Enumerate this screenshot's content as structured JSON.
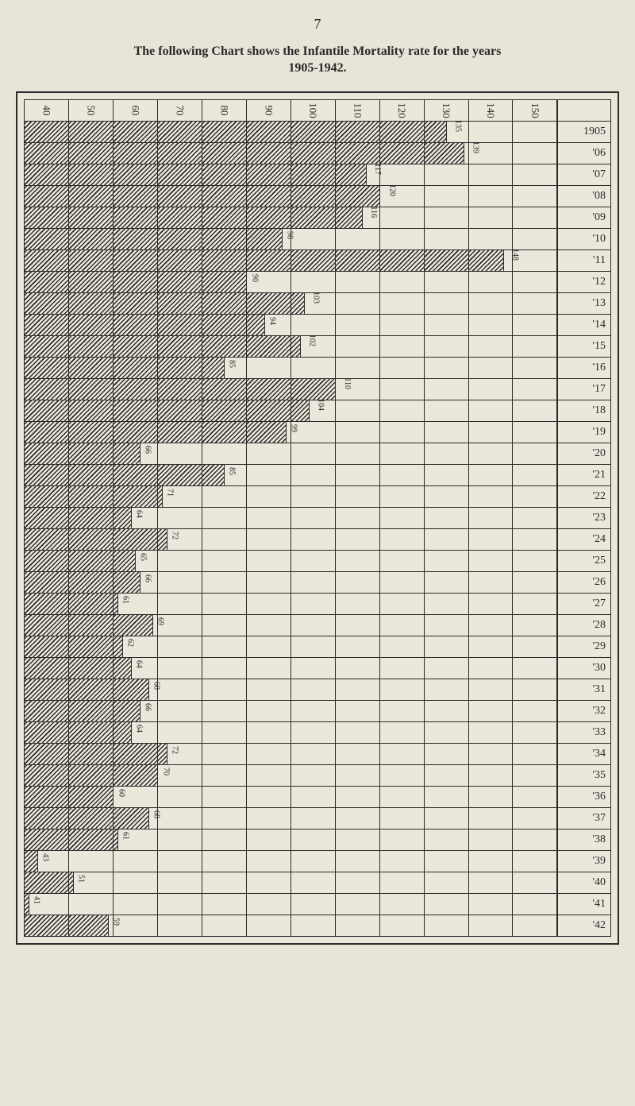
{
  "page": {
    "number": "7",
    "title_line1": "The following Chart shows the Infantile Mortality rate for the years",
    "title_line2": "1905-1942."
  },
  "chart": {
    "type": "bar",
    "orientation": "horizontal",
    "background_color": "#ebe7db",
    "border_color": "#2a2a2a",
    "hatch_color": "#2a2a2a",
    "x_axis": {
      "min": 40,
      "max": 150,
      "tick_step": 10,
      "ticks": [
        40,
        50,
        60,
        70,
        80,
        90,
        100,
        110,
        120,
        130,
        140,
        150
      ]
    },
    "rows": [
      {
        "year": "1905",
        "value": 135
      },
      {
        "year": "'06",
        "value": 139
      },
      {
        "year": "'07",
        "value": 117
      },
      {
        "year": "'08",
        "value": 120
      },
      {
        "year": "'09",
        "value": 116
      },
      {
        "year": "'10",
        "value": 98
      },
      {
        "year": "'11",
        "value": 148
      },
      {
        "year": "'12",
        "value": 90
      },
      {
        "year": "'13",
        "value": 103
      },
      {
        "year": "'14",
        "value": 94
      },
      {
        "year": "'15",
        "value": 102
      },
      {
        "year": "'16",
        "value": 85
      },
      {
        "year": "'17",
        "value": 110
      },
      {
        "year": "'18",
        "value": 104
      },
      {
        "year": "'19",
        "value": 99
      },
      {
        "year": "'20",
        "value": 66
      },
      {
        "year": "'21",
        "value": 85
      },
      {
        "year": "'22",
        "value": 71
      },
      {
        "year": "'23",
        "value": 64
      },
      {
        "year": "'24",
        "value": 72
      },
      {
        "year": "'25",
        "value": 65
      },
      {
        "year": "'26",
        "value": 66
      },
      {
        "year": "'27",
        "value": 61
      },
      {
        "year": "'28",
        "value": 69
      },
      {
        "year": "'29",
        "value": 62
      },
      {
        "year": "'30",
        "value": 64
      },
      {
        "year": "'31",
        "value": 68
      },
      {
        "year": "'32",
        "value": 66
      },
      {
        "year": "'33",
        "value": 64
      },
      {
        "year": "'34",
        "value": 72
      },
      {
        "year": "'35",
        "value": 70
      },
      {
        "year": "'36",
        "value": 60
      },
      {
        "year": "'37",
        "value": 68
      },
      {
        "year": "'38",
        "value": 61
      },
      {
        "year": "'39",
        "value": 43
      },
      {
        "year": "'40",
        "value": 51
      },
      {
        "year": "'41",
        "value": 41
      },
      {
        "year": "'42",
        "value": 59
      }
    ]
  }
}
